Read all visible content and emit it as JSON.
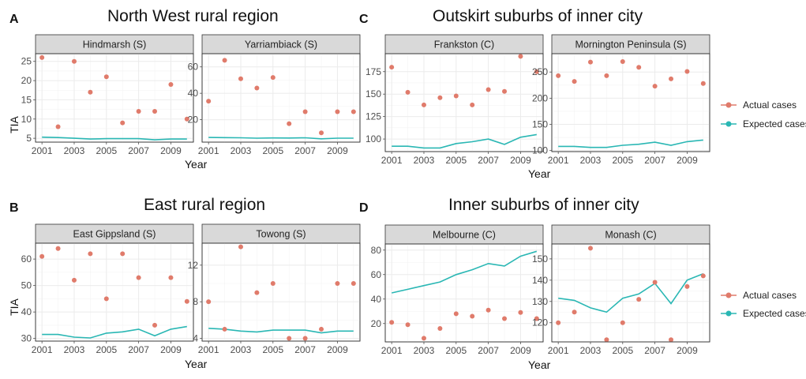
{
  "colors": {
    "actual": "#E07B6B",
    "expected": "#2AB7B4",
    "strip": "#d9d9d9",
    "grid": "#ebebeb"
  },
  "legend": {
    "actual": "Actual cases",
    "expected": "Expected cases"
  },
  "chart_data": [
    {
      "id": "A",
      "label": "A",
      "title": "North West rural region",
      "ylabel": "TIA",
      "xlabel": "Year",
      "type": "scatter+line",
      "panels": [
        {
          "name": "Hindmarsh (S)",
          "ylim": [
            4,
            27
          ],
          "yticks": [
            "5",
            "10",
            "15",
            "20",
            "25"
          ],
          "ytick_values": [
            5,
            10,
            15,
            20,
            25
          ],
          "xticks": [
            "2001",
            "2003",
            "2005",
            "2007",
            "2009"
          ],
          "x": [
            2001,
            2002,
            2003,
            2004,
            2005,
            2006,
            2007,
            2008,
            2009,
            2010
          ],
          "actual": [
            26,
            8,
            25,
            17,
            21,
            9,
            12,
            12,
            19,
            10
          ],
          "expected": [
            5.3,
            5.2,
            5.0,
            4.8,
            4.9,
            4.9,
            4.9,
            4.6,
            4.8,
            4.8
          ]
        },
        {
          "name": "Yarriambiack (S)",
          "ylim": [
            3,
            70
          ],
          "yticks": [
            "20",
            "40",
            "60"
          ],
          "ytick_values": [
            20,
            40,
            60
          ],
          "xticks": [
            "2001",
            "2003",
            "2005",
            "2007",
            "2009"
          ],
          "x": [
            2001,
            2002,
            2003,
            2004,
            2005,
            2006,
            2007,
            2008,
            2009,
            2010
          ],
          "actual": [
            34,
            65,
            51,
            44,
            52,
            17,
            26,
            10,
            26,
            26
          ],
          "expected": [
            6.5,
            6.4,
            6.3,
            6.0,
            6.2,
            6.1,
            6.3,
            5.5,
            6.0,
            6.0
          ]
        }
      ]
    },
    {
      "id": "C",
      "label": "C",
      "title": "Outskirt suburbs of inner city",
      "ylabel": "",
      "xlabel": "Year",
      "type": "scatter+line",
      "panels": [
        {
          "name": "Frankston (C)",
          "ylim": [
            86,
            195
          ],
          "yticks": [
            "100",
            "125",
            "150",
            "175"
          ],
          "ytick_values": [
            100,
            125,
            150,
            175
          ],
          "xticks": [
            "2001",
            "2003",
            "2005",
            "2007",
            "2009"
          ],
          "x": [
            2001,
            2002,
            2003,
            2004,
            2005,
            2006,
            2007,
            2008,
            2009,
            2010
          ],
          "actual": [
            180,
            152,
            138,
            146,
            148,
            138,
            155,
            153,
            192,
            175
          ],
          "expected": [
            92,
            92,
            90,
            90,
            95,
            97,
            100,
            94,
            102,
            105
          ]
        },
        {
          "name": "Mornington Peninsula (S)",
          "ylim": [
            98,
            285
          ],
          "yticks": [
            "100",
            "150",
            "200",
            "250"
          ],
          "ytick_values": [
            100,
            150,
            200,
            250
          ],
          "xticks": [
            "2001",
            "2003",
            "2005",
            "2007",
            "2009"
          ],
          "x": [
            2001,
            2002,
            2003,
            2004,
            2005,
            2006,
            2007,
            2008,
            2009,
            2010
          ],
          "actual": [
            243,
            232,
            269,
            243,
            270,
            259,
            223,
            237,
            251,
            228
          ],
          "expected": [
            108,
            108,
            106,
            106,
            110,
            112,
            116,
            110,
            117,
            120
          ]
        }
      ]
    },
    {
      "id": "B",
      "label": "B",
      "title": "East rural region",
      "ylabel": "TIA",
      "xlabel": "Year",
      "type": "scatter+line",
      "panels": [
        {
          "name": "East Gippsland (S)",
          "ylim": [
            29,
            66
          ],
          "yticks": [
            "30",
            "40",
            "50",
            "60"
          ],
          "ytick_values": [
            30,
            40,
            50,
            60
          ],
          "xticks": [
            "2001",
            "2003",
            "2005",
            "2007",
            "2009"
          ],
          "x": [
            2001,
            2002,
            2003,
            2004,
            2005,
            2006,
            2007,
            2008,
            2009,
            2010
          ],
          "actual": [
            61,
            64,
            52,
            62,
            45,
            62,
            53,
            35,
            53,
            44
          ],
          "expected": [
            31.5,
            31.5,
            30.5,
            30.2,
            32,
            32.5,
            33.5,
            31,
            33.5,
            34.5
          ]
        },
        {
          "name": "Towong (S)",
          "ylim": [
            3.7,
            14.4
          ],
          "yticks": [
            "4",
            "8",
            "12"
          ],
          "ytick_values": [
            4,
            8,
            12
          ],
          "xticks": [
            "2001",
            "2003",
            "2005",
            "2007",
            "2009"
          ],
          "x": [
            2001,
            2002,
            2003,
            2004,
            2005,
            2006,
            2007,
            2008,
            2009,
            2010
          ],
          "actual": [
            8,
            5,
            14,
            9,
            10,
            4,
            4,
            5,
            10,
            10
          ],
          "expected": [
            5.1,
            5.0,
            4.8,
            4.7,
            4.9,
            4.9,
            4.9,
            4.6,
            4.8,
            4.8
          ]
        }
      ]
    },
    {
      "id": "D",
      "label": "D",
      "title": "Inner suburbs of inner city",
      "ylabel": "",
      "xlabel": "Year",
      "type": "scatter+line",
      "panels": [
        {
          "name": "Melbourne (C)",
          "ylim": [
            5,
            85
          ],
          "yticks": [
            "20",
            "40",
            "60",
            "80"
          ],
          "ytick_values": [
            20,
            40,
            60,
            80
          ],
          "xticks": [
            "2001",
            "2003",
            "2005",
            "2007",
            "2009"
          ],
          "x": [
            2001,
            2002,
            2003,
            2004,
            2005,
            2006,
            2007,
            2008,
            2009,
            2010
          ],
          "actual": [
            21,
            19,
            8,
            16,
            28,
            26,
            31,
            24,
            29,
            24
          ],
          "expected": [
            45,
            48,
            51,
            54,
            60,
            64,
            69,
            67,
            75,
            79
          ]
        },
        {
          "name": "Monash (C)",
          "ylim": [
            111,
            157
          ],
          "yticks": [
            "120",
            "130",
            "140",
            "150"
          ],
          "ytick_values": [
            120,
            130,
            140,
            150
          ],
          "xticks": [
            "2001",
            "2003",
            "2005",
            "2007",
            "2009"
          ],
          "x": [
            2001,
            2002,
            2003,
            2004,
            2005,
            2006,
            2007,
            2008,
            2009,
            2010
          ],
          "actual": [
            120,
            125,
            155,
            112,
            120,
            131,
            139,
            112,
            137,
            142
          ],
          "expected": [
            131.5,
            130.5,
            127,
            125,
            131.5,
            133.5,
            138.5,
            129,
            140,
            143
          ]
        }
      ]
    }
  ]
}
